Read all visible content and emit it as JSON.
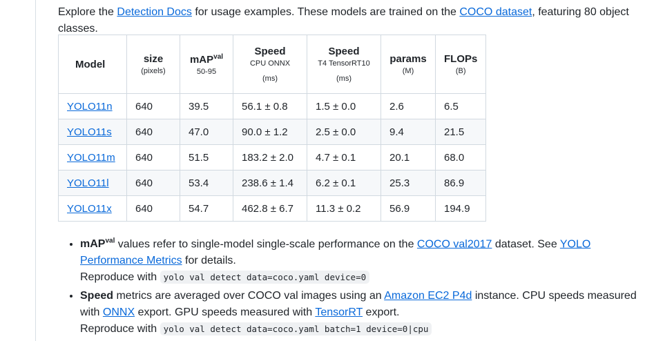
{
  "intro": {
    "prefix": "Explore the ",
    "link1": "Detection Docs",
    "middle": " for usage examples. These models are trained on the ",
    "link2": "COCO dataset",
    "suffix": ", featuring 80 object classes."
  },
  "table": {
    "headers": {
      "model": "Model",
      "size": "size",
      "size_unit": "(pixels)",
      "map": "mAP",
      "map_sup": "val",
      "map_sub": "50-95",
      "speed_cpu": "Speed",
      "speed_cpu_sub": "CPU ONNX",
      "speed_cpu_unit": "(ms)",
      "speed_gpu": "Speed",
      "speed_gpu_sub": "T4 TensorRT10",
      "speed_gpu_unit": "(ms)",
      "params": "params",
      "params_unit": "(M)",
      "flops": "FLOPs",
      "flops_unit": "(B)"
    },
    "rows": [
      {
        "model": "YOLO11n",
        "size": "640",
        "map": "39.5",
        "cpu": "56.1 ± 0.8",
        "gpu": "1.5 ± 0.0",
        "params": "2.6",
        "flops": "6.5"
      },
      {
        "model": "YOLO11s",
        "size": "640",
        "map": "47.0",
        "cpu": "90.0 ± 1.2",
        "gpu": "2.5 ± 0.0",
        "params": "9.4",
        "flops": "21.5"
      },
      {
        "model": "YOLO11m",
        "size": "640",
        "map": "51.5",
        "cpu": "183.2 ± 2.0",
        "gpu": "4.7 ± 0.1",
        "params": "20.1",
        "flops": "68.0"
      },
      {
        "model": "YOLO11l",
        "size": "640",
        "map": "53.4",
        "cpu": "238.6 ± 1.4",
        "gpu": "6.2 ± 0.1",
        "params": "25.3",
        "flops": "86.9"
      },
      {
        "model": "YOLO11x",
        "size": "640",
        "map": "54.7",
        "cpu": "462.8 ± 6.7",
        "gpu": "11.3 ± 0.2",
        "params": "56.9",
        "flops": "194.9"
      }
    ]
  },
  "notes": {
    "map": {
      "title": "mAP",
      "title_sup": "val",
      "text1": " values refer to single-model single-scale performance on the ",
      "link1": "COCO val2017",
      "text2": " dataset. See ",
      "link2": "YOLO Performance Metrics",
      "text3": " for details.",
      "reproduce": "Reproduce with ",
      "cmd": "yolo val detect data=coco.yaml device=0"
    },
    "speed": {
      "title": "Speed",
      "text1": " metrics are averaged over COCO val images using an ",
      "link1": "Amazon EC2 P4d",
      "text2": " instance. CPU speeds measured with ",
      "link2": "ONNX",
      "text3": " export. GPU speeds measured with ",
      "link3": "TensorRT",
      "text4": " export.",
      "reproduce": "Reproduce with ",
      "cmd": "yolo val detect data=coco.yaml batch=1 device=0|cpu"
    }
  }
}
